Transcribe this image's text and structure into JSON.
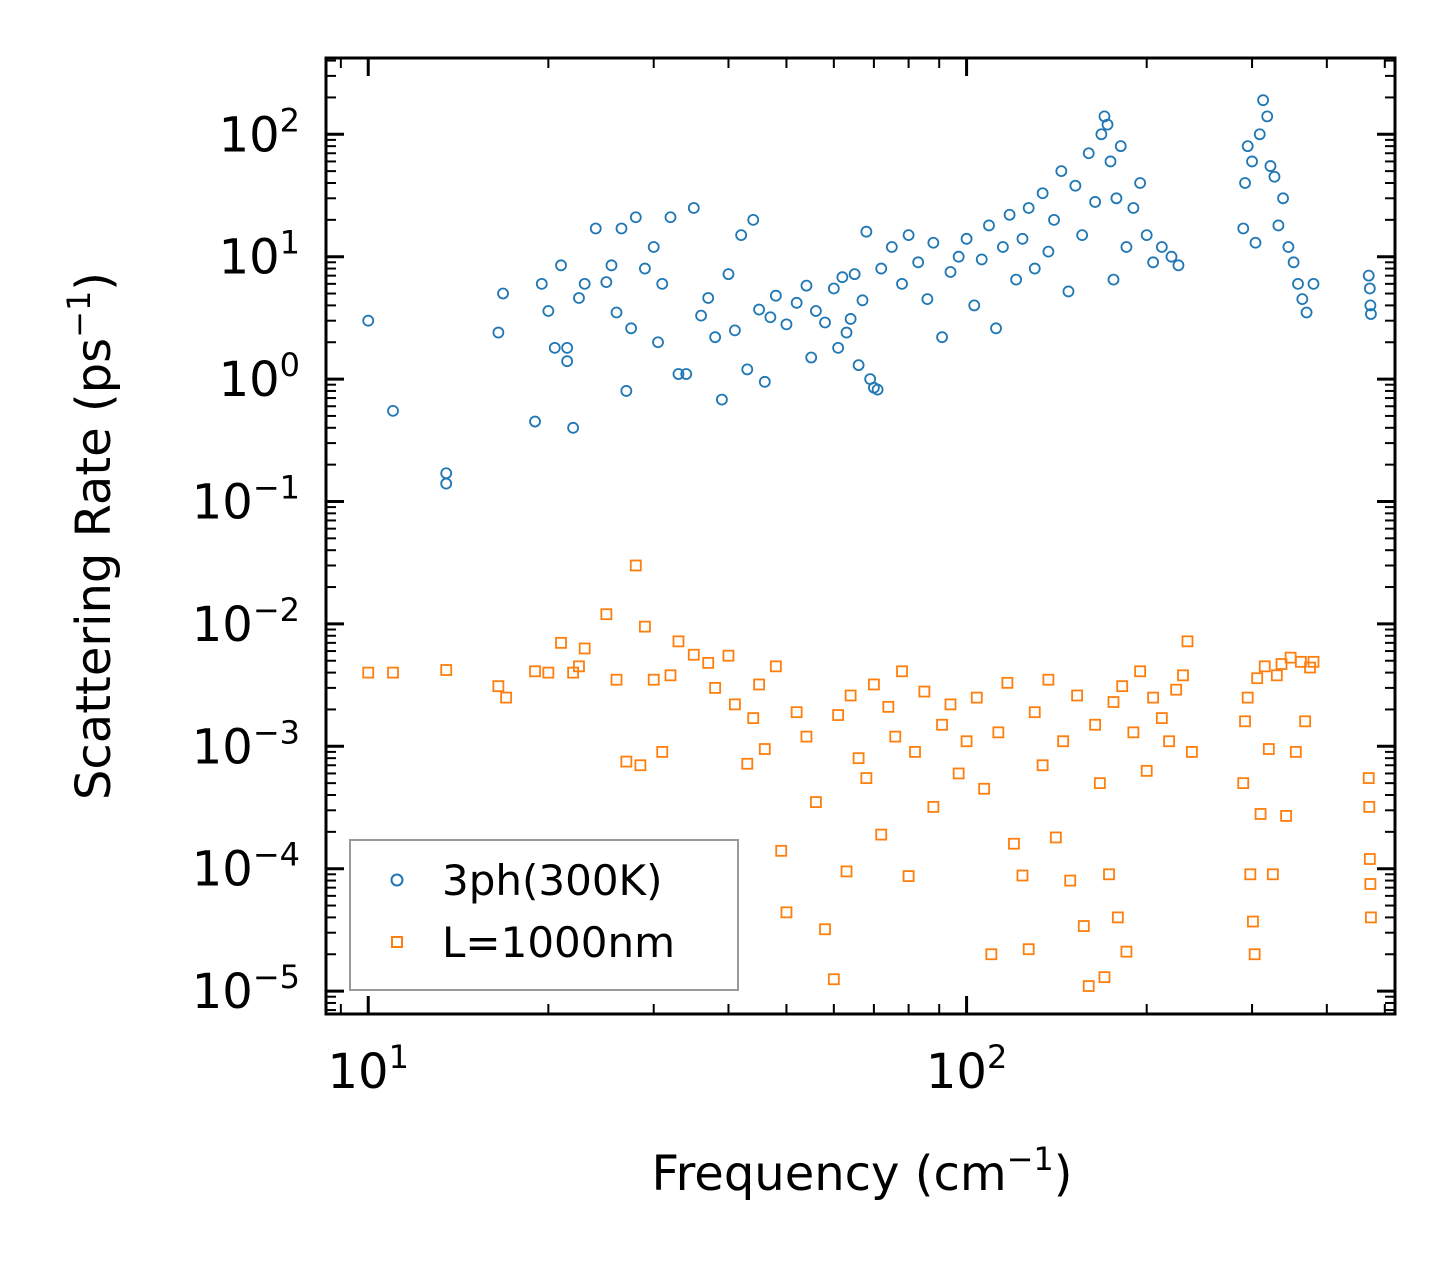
{
  "chart_data": {
    "type": "scatter",
    "xscale": "log",
    "yscale": "log",
    "xlabel": "Frequency (cm",
    "xlabel_sup": "−1",
    "xlabel_end": ")",
    "ylabel": "Scattering Rate (ps",
    "ylabel_sup": "−1",
    "ylabel_end": ")",
    "xlim": [
      8.5,
      520
    ],
    "ylim": [
      6.5e-06,
      420
    ],
    "x_ticks": [
      {
        "value": 10,
        "base": "10",
        "exp": "1"
      },
      {
        "value": 100,
        "base": "10",
        "exp": "2"
      }
    ],
    "y_ticks": [
      {
        "value": 1e-05,
        "base": "10",
        "exp": "−5"
      },
      {
        "value": 0.0001,
        "base": "10",
        "exp": "−4"
      },
      {
        "value": 0.001,
        "base": "10",
        "exp": "−3"
      },
      {
        "value": 0.01,
        "base": "10",
        "exp": "−2"
      },
      {
        "value": 0.1,
        "base": "10",
        "exp": "−1"
      },
      {
        "value": 1,
        "base": "10",
        "exp": "0"
      },
      {
        "value": 10,
        "base": "10",
        "exp": "1"
      },
      {
        "value": 100,
        "base": "10",
        "exp": "2"
      }
    ],
    "legend_position": "bottom-left",
    "series": [
      {
        "name": "3ph(300K)",
        "marker": "circle",
        "color": "#1f77b4",
        "points": [
          [
            10,
            3.0
          ],
          [
            11,
            0.55
          ],
          [
            13.5,
            0.17
          ],
          [
            13.5,
            0.14
          ],
          [
            16.5,
            2.4
          ],
          [
            16.8,
            5.0
          ],
          [
            19,
            0.45
          ],
          [
            19.5,
            6.0
          ],
          [
            20,
            3.6
          ],
          [
            21,
            8.5
          ],
          [
            20.5,
            1.8
          ],
          [
            21.5,
            1.8
          ],
          [
            21.5,
            1.4
          ],
          [
            22,
            0.4
          ],
          [
            22.5,
            4.6
          ],
          [
            23,
            6.0
          ],
          [
            24,
            17.0
          ],
          [
            25,
            6.2
          ],
          [
            25.5,
            8.5
          ],
          [
            26,
            3.5
          ],
          [
            26.5,
            17.0
          ],
          [
            27,
            0.8
          ],
          [
            27.5,
            2.6
          ],
          [
            28,
            21.0
          ],
          [
            29,
            8.0
          ],
          [
            30,
            12.0
          ],
          [
            30.5,
            2.0
          ],
          [
            31,
            6.0
          ],
          [
            32,
            21.0
          ],
          [
            33,
            1.1
          ],
          [
            34,
            1.1
          ],
          [
            35,
            25.0
          ],
          [
            36,
            3.3
          ],
          [
            37,
            4.6
          ],
          [
            38,
            2.2
          ],
          [
            39,
            0.68
          ],
          [
            40,
            7.2
          ],
          [
            41,
            2.5
          ],
          [
            42,
            15.0
          ],
          [
            43,
            1.2
          ],
          [
            44,
            20.0
          ],
          [
            45,
            3.7
          ],
          [
            46,
            0.95
          ],
          [
            47,
            3.2
          ],
          [
            48,
            4.8
          ],
          [
            50,
            2.8
          ],
          [
            52,
            4.2
          ],
          [
            54,
            5.8
          ],
          [
            55,
            1.5
          ],
          [
            56,
            3.6
          ],
          [
            58,
            2.9
          ],
          [
            60,
            5.5
          ],
          [
            61,
            1.8
          ],
          [
            62,
            6.8
          ],
          [
            63,
            2.4
          ],
          [
            64,
            3.1
          ],
          [
            65,
            7.2
          ],
          [
            66,
            1.3
          ],
          [
            67,
            4.4
          ],
          [
            68,
            16.0
          ],
          [
            69,
            1.0
          ],
          [
            70,
            0.85
          ],
          [
            71,
            0.82
          ],
          [
            72,
            8.0
          ],
          [
            75,
            12.0
          ],
          [
            78,
            6.0
          ],
          [
            80,
            15.0
          ],
          [
            83,
            9.0
          ],
          [
            86,
            4.5
          ],
          [
            88,
            13.0
          ],
          [
            91,
            2.2
          ],
          [
            94,
            7.5
          ],
          [
            97,
            10.0
          ],
          [
            100,
            14.0
          ],
          [
            103,
            4.0
          ],
          [
            106,
            9.5
          ],
          [
            109,
            18.0
          ],
          [
            112,
            2.6
          ],
          [
            115,
            12.0
          ],
          [
            118,
            22.0
          ],
          [
            121,
            6.5
          ],
          [
            124,
            14.0
          ],
          [
            127,
            25.0
          ],
          [
            130,
            8.0
          ],
          [
            134,
            33.0
          ],
          [
            137,
            11.0
          ],
          [
            140,
            20.0
          ],
          [
            144,
            50.0
          ],
          [
            148,
            5.2
          ],
          [
            152,
            38.0
          ],
          [
            156,
            15.0
          ],
          [
            160,
            70.0
          ],
          [
            164,
            28.0
          ],
          [
            168,
            100.0
          ],
          [
            170,
            140.0
          ],
          [
            172,
            120.0
          ],
          [
            174,
            60.0
          ],
          [
            176,
            6.5
          ],
          [
            178,
            30.0
          ],
          [
            181,
            80.0
          ],
          [
            185,
            12.0
          ],
          [
            190,
            25.0
          ],
          [
            195,
            40.0
          ],
          [
            200,
            15.0
          ],
          [
            205,
            9.0
          ],
          [
            212,
            12.0
          ],
          [
            220,
            10.0
          ],
          [
            226,
            8.5
          ],
          [
            290,
            17.0
          ],
          [
            292,
            40.0
          ],
          [
            295,
            80.0
          ],
          [
            300,
            60.0
          ],
          [
            304,
            13.0
          ],
          [
            309,
            100.0
          ],
          [
            313,
            190.0
          ],
          [
            318,
            140.0
          ],
          [
            322,
            55.0
          ],
          [
            327,
            45.0
          ],
          [
            332,
            18.0
          ],
          [
            338,
            30.0
          ],
          [
            345,
            12.0
          ],
          [
            352,
            9.0
          ],
          [
            358,
            6.0
          ],
          [
            364,
            4.5
          ],
          [
            370,
            3.5
          ],
          [
            380,
            6.0
          ],
          [
            470,
            7.0
          ],
          [
            472,
            5.5
          ],
          [
            473,
            4.0
          ],
          [
            474,
            3.4
          ]
        ]
      },
      {
        "name": "L=1000nm",
        "marker": "square",
        "color": "#ff7f0e",
        "points": [
          [
            10,
            0.004
          ],
          [
            11,
            0.004
          ],
          [
            13.5,
            0.0042
          ],
          [
            16.5,
            0.0031
          ],
          [
            17,
            0.0025
          ],
          [
            19,
            0.0041
          ],
          [
            20,
            0.004
          ],
          [
            21,
            0.007
          ],
          [
            22,
            0.004
          ],
          [
            22.5,
            0.0045
          ],
          [
            23,
            0.0063
          ],
          [
            25,
            0.012
          ],
          [
            26,
            0.0035
          ],
          [
            27,
            0.00075
          ],
          [
            28,
            0.03
          ],
          [
            28.5,
            0.0007
          ],
          [
            29,
            0.0095
          ],
          [
            30,
            0.0035
          ],
          [
            31,
            0.0009
          ],
          [
            32,
            0.0038
          ],
          [
            33,
            0.0072
          ],
          [
            35,
            0.0056
          ],
          [
            37,
            0.0048
          ],
          [
            38,
            0.003
          ],
          [
            40,
            0.0055
          ],
          [
            41,
            0.0022
          ],
          [
            43,
            0.00072
          ],
          [
            44,
            0.0017
          ],
          [
            45,
            0.0032
          ],
          [
            46,
            0.00095
          ],
          [
            48,
            0.0045
          ],
          [
            49,
            0.00014
          ],
          [
            50,
            4.4e-05
          ],
          [
            52,
            0.0019
          ],
          [
            54,
            0.0012
          ],
          [
            56,
            0.00035
          ],
          [
            58,
            3.2e-05
          ],
          [
            60,
            1.25e-05
          ],
          [
            61,
            0.0018
          ],
          [
            63,
            9.5e-05
          ],
          [
            64,
            0.0026
          ],
          [
            66,
            0.0008
          ],
          [
            68,
            0.00055
          ],
          [
            70,
            0.0032
          ],
          [
            72,
            0.00019
          ],
          [
            74,
            0.0021
          ],
          [
            76,
            0.0012
          ],
          [
            78,
            0.0041
          ],
          [
            80,
            8.7e-05
          ],
          [
            82,
            0.0009
          ],
          [
            85,
            0.0028
          ],
          [
            88,
            0.00032
          ],
          [
            91,
            0.0015
          ],
          [
            94,
            0.0022
          ],
          [
            97,
            0.0006
          ],
          [
            100,
            0.0011
          ],
          [
            104,
            0.0025
          ],
          [
            107,
            0.00045
          ],
          [
            110,
            2e-05
          ],
          [
            113,
            0.0013
          ],
          [
            117,
            0.0033
          ],
          [
            120,
            0.00016
          ],
          [
            124,
            8.8e-05
          ],
          [
            127,
            2.2e-05
          ],
          [
            130,
            0.0019
          ],
          [
            134,
            0.0007
          ],
          [
            137,
            0.0035
          ],
          [
            141,
            0.00018
          ],
          [
            145,
            0.0011
          ],
          [
            149,
            8e-05
          ],
          [
            153,
            0.0026
          ],
          [
            157,
            3.4e-05
          ],
          [
            160,
            1.1e-05
          ],
          [
            164,
            0.0015
          ],
          [
            167,
            0.0005
          ],
          [
            170,
            1.3e-05
          ],
          [
            173,
            9e-05
          ],
          [
            176,
            0.0023
          ],
          [
            179,
            4e-05
          ],
          [
            182,
            0.0031
          ],
          [
            185,
            2.1e-05
          ],
          [
            190,
            0.0013
          ],
          [
            195,
            0.0041
          ],
          [
            200,
            0.00063
          ],
          [
            205,
            0.0025
          ],
          [
            212,
            0.0017
          ],
          [
            218,
            0.0011
          ],
          [
            224,
            0.0029
          ],
          [
            230,
            0.0038
          ],
          [
            234,
            0.0072
          ],
          [
            238,
            0.0009
          ],
          [
            290,
            0.0005
          ],
          [
            292,
            0.0016
          ],
          [
            295,
            0.0025
          ],
          [
            298,
            9e-05
          ],
          [
            301,
            3.7e-05
          ],
          [
            303,
            2e-05
          ],
          [
            306,
            0.0036
          ],
          [
            310,
            0.00028
          ],
          [
            315,
            0.0045
          ],
          [
            320,
            0.00095
          ],
          [
            325,
            9e-05
          ],
          [
            330,
            0.0038
          ],
          [
            336,
            0.0047
          ],
          [
            342,
            0.00027
          ],
          [
            348,
            0.0053
          ],
          [
            355,
            0.0009
          ],
          [
            362,
            0.0049
          ],
          [
            368,
            0.0016
          ],
          [
            375,
            0.0044
          ],
          [
            380,
            0.0049
          ],
          [
            470,
            0.00055
          ],
          [
            471,
            0.00032
          ],
          [
            472,
            0.00012
          ],
          [
            473,
            7.5e-05
          ],
          [
            474,
            4e-05
          ]
        ]
      }
    ]
  }
}
